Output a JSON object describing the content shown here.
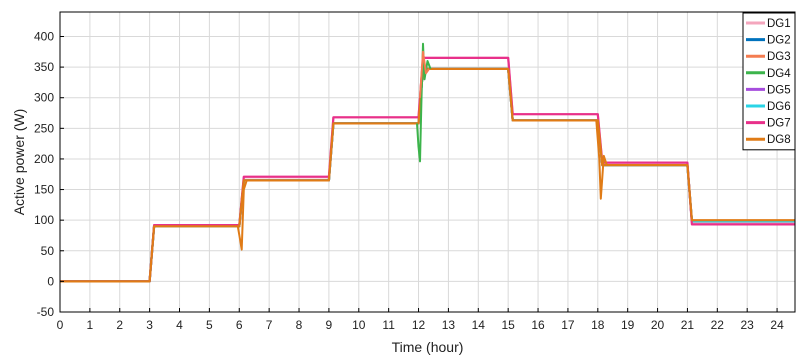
{
  "chart_data": {
    "type": "line",
    "xlabel": "Time (hour)",
    "ylabel": "Active power (W)",
    "xlim": [
      0,
      24.6
    ],
    "ylim": [
      -50,
      440
    ],
    "x_ticks": [
      0,
      1,
      2,
      3,
      4,
      5,
      6,
      7,
      8,
      9,
      10,
      11,
      12,
      13,
      14,
      15,
      16,
      17,
      18,
      19,
      20,
      21,
      22,
      23,
      24
    ],
    "y_ticks": [
      -50,
      0,
      50,
      100,
      150,
      200,
      250,
      300,
      350,
      400
    ],
    "grid": true,
    "legend_position": "top-right",
    "series": [
      {
        "name": "DG1",
        "color": "#f4a6bd",
        "x": [
          0,
          3,
          3.15,
          6,
          6.15,
          9,
          9.15,
          12,
          12.15,
          15,
          15.15,
          18,
          18.15,
          21,
          21.15,
          24.6
        ],
        "values": [
          0,
          0,
          92,
          92,
          170,
          170,
          268,
          268,
          365,
          365,
          273,
          273,
          194,
          194,
          96,
          96
        ]
      },
      {
        "name": "DG2",
        "color": "#0072bd",
        "x": [
          0,
          3,
          3.15,
          6,
          6.15,
          9,
          9.15,
          12,
          12.15,
          15,
          15.15,
          18,
          18.15,
          21,
          21.15,
          24.6
        ],
        "values": [
          0,
          0,
          90,
          90,
          165,
          165,
          258,
          258,
          347,
          347,
          263,
          263,
          190,
          190,
          98,
          98
        ]
      },
      {
        "name": "DG3",
        "color": "#f47c50",
        "x": [
          0,
          3,
          3.15,
          6,
          6.15,
          9,
          9.15,
          12,
          12.15,
          15,
          15.15,
          18,
          18.15,
          21,
          21.15,
          24.6
        ],
        "values": [
          0,
          0,
          90,
          90,
          165,
          165,
          258,
          258,
          347,
          347,
          263,
          263,
          190,
          190,
          99,
          99
        ]
      },
      {
        "name": "DG4",
        "color": "#3cb44b",
        "x": [
          0,
          3,
          3.15,
          6,
          6.15,
          9,
          9.15,
          12,
          12.15,
          15,
          15.15,
          18,
          18.15,
          21,
          21.15,
          24.6
        ],
        "values": [
          0,
          0,
          90,
          90,
          165,
          165,
          258,
          258,
          347,
          347,
          263,
          263,
          190,
          190,
          99,
          99
        ]
      },
      {
        "name": "DG5",
        "color": "#a64ddd",
        "x": [
          0,
          3,
          3.15,
          6,
          6.15,
          9,
          9.15,
          12,
          12.15,
          15,
          15.15,
          18,
          18.15,
          21,
          21.15,
          24.6
        ],
        "values": [
          0,
          0,
          90,
          90,
          165,
          165,
          258,
          258,
          347,
          347,
          263,
          263,
          190,
          190,
          98,
          98
        ]
      },
      {
        "name": "DG6",
        "color": "#2ad4e6",
        "x": [
          0,
          3,
          3.15,
          6,
          6.15,
          9,
          9.15,
          12,
          12.15,
          15,
          15.15,
          18,
          18.15,
          21,
          21.15,
          24.6
        ],
        "values": [
          0,
          0,
          90,
          90,
          165,
          165,
          258,
          258,
          347,
          347,
          263,
          263,
          190,
          190,
          98,
          98
        ]
      },
      {
        "name": "DG7",
        "color": "#e8308a",
        "x": [
          0,
          3,
          3.15,
          6,
          6.15,
          9,
          9.15,
          12,
          12.15,
          15,
          15.15,
          18,
          18.15,
          21,
          21.15,
          24.6
        ],
        "values": [
          0,
          0,
          92,
          92,
          171,
          171,
          268,
          268,
          365,
          365,
          273,
          273,
          194,
          194,
          93,
          93
        ]
      },
      {
        "name": "DG8",
        "color": "#e07b16",
        "x": [
          0,
          3,
          3.15,
          6,
          6.15,
          9,
          9.15,
          12,
          12.15,
          15,
          15.15,
          18,
          18.15,
          21,
          21.15,
          24.6
        ],
        "values": [
          0,
          0,
          90,
          90,
          165,
          165,
          258,
          258,
          347,
          347,
          263,
          263,
          190,
          190,
          100,
          100
        ]
      }
    ],
    "transients": [
      {
        "series": "DG4",
        "x": [
          11.95,
          12.0,
          12.05,
          12.1,
          12.15,
          12.2,
          12.3,
          12.4
        ],
        "values": [
          258,
          220,
          196,
          300,
          388,
          330,
          360,
          347
        ]
      },
      {
        "series": "DG8",
        "x": [
          5.95,
          6.02,
          6.08,
          6.15,
          6.25
        ],
        "values": [
          90,
          70,
          52,
          150,
          165
        ]
      },
      {
        "series": "DG8",
        "x": [
          17.95,
          18.05,
          18.1,
          18.2,
          18.3
        ],
        "values": [
          263,
          200,
          135,
          205,
          190
        ]
      },
      {
        "series": "DG3",
        "x": [
          12.05,
          12.15,
          12.25,
          12.35
        ],
        "values": [
          300,
          375,
          340,
          347
        ]
      }
    ]
  }
}
